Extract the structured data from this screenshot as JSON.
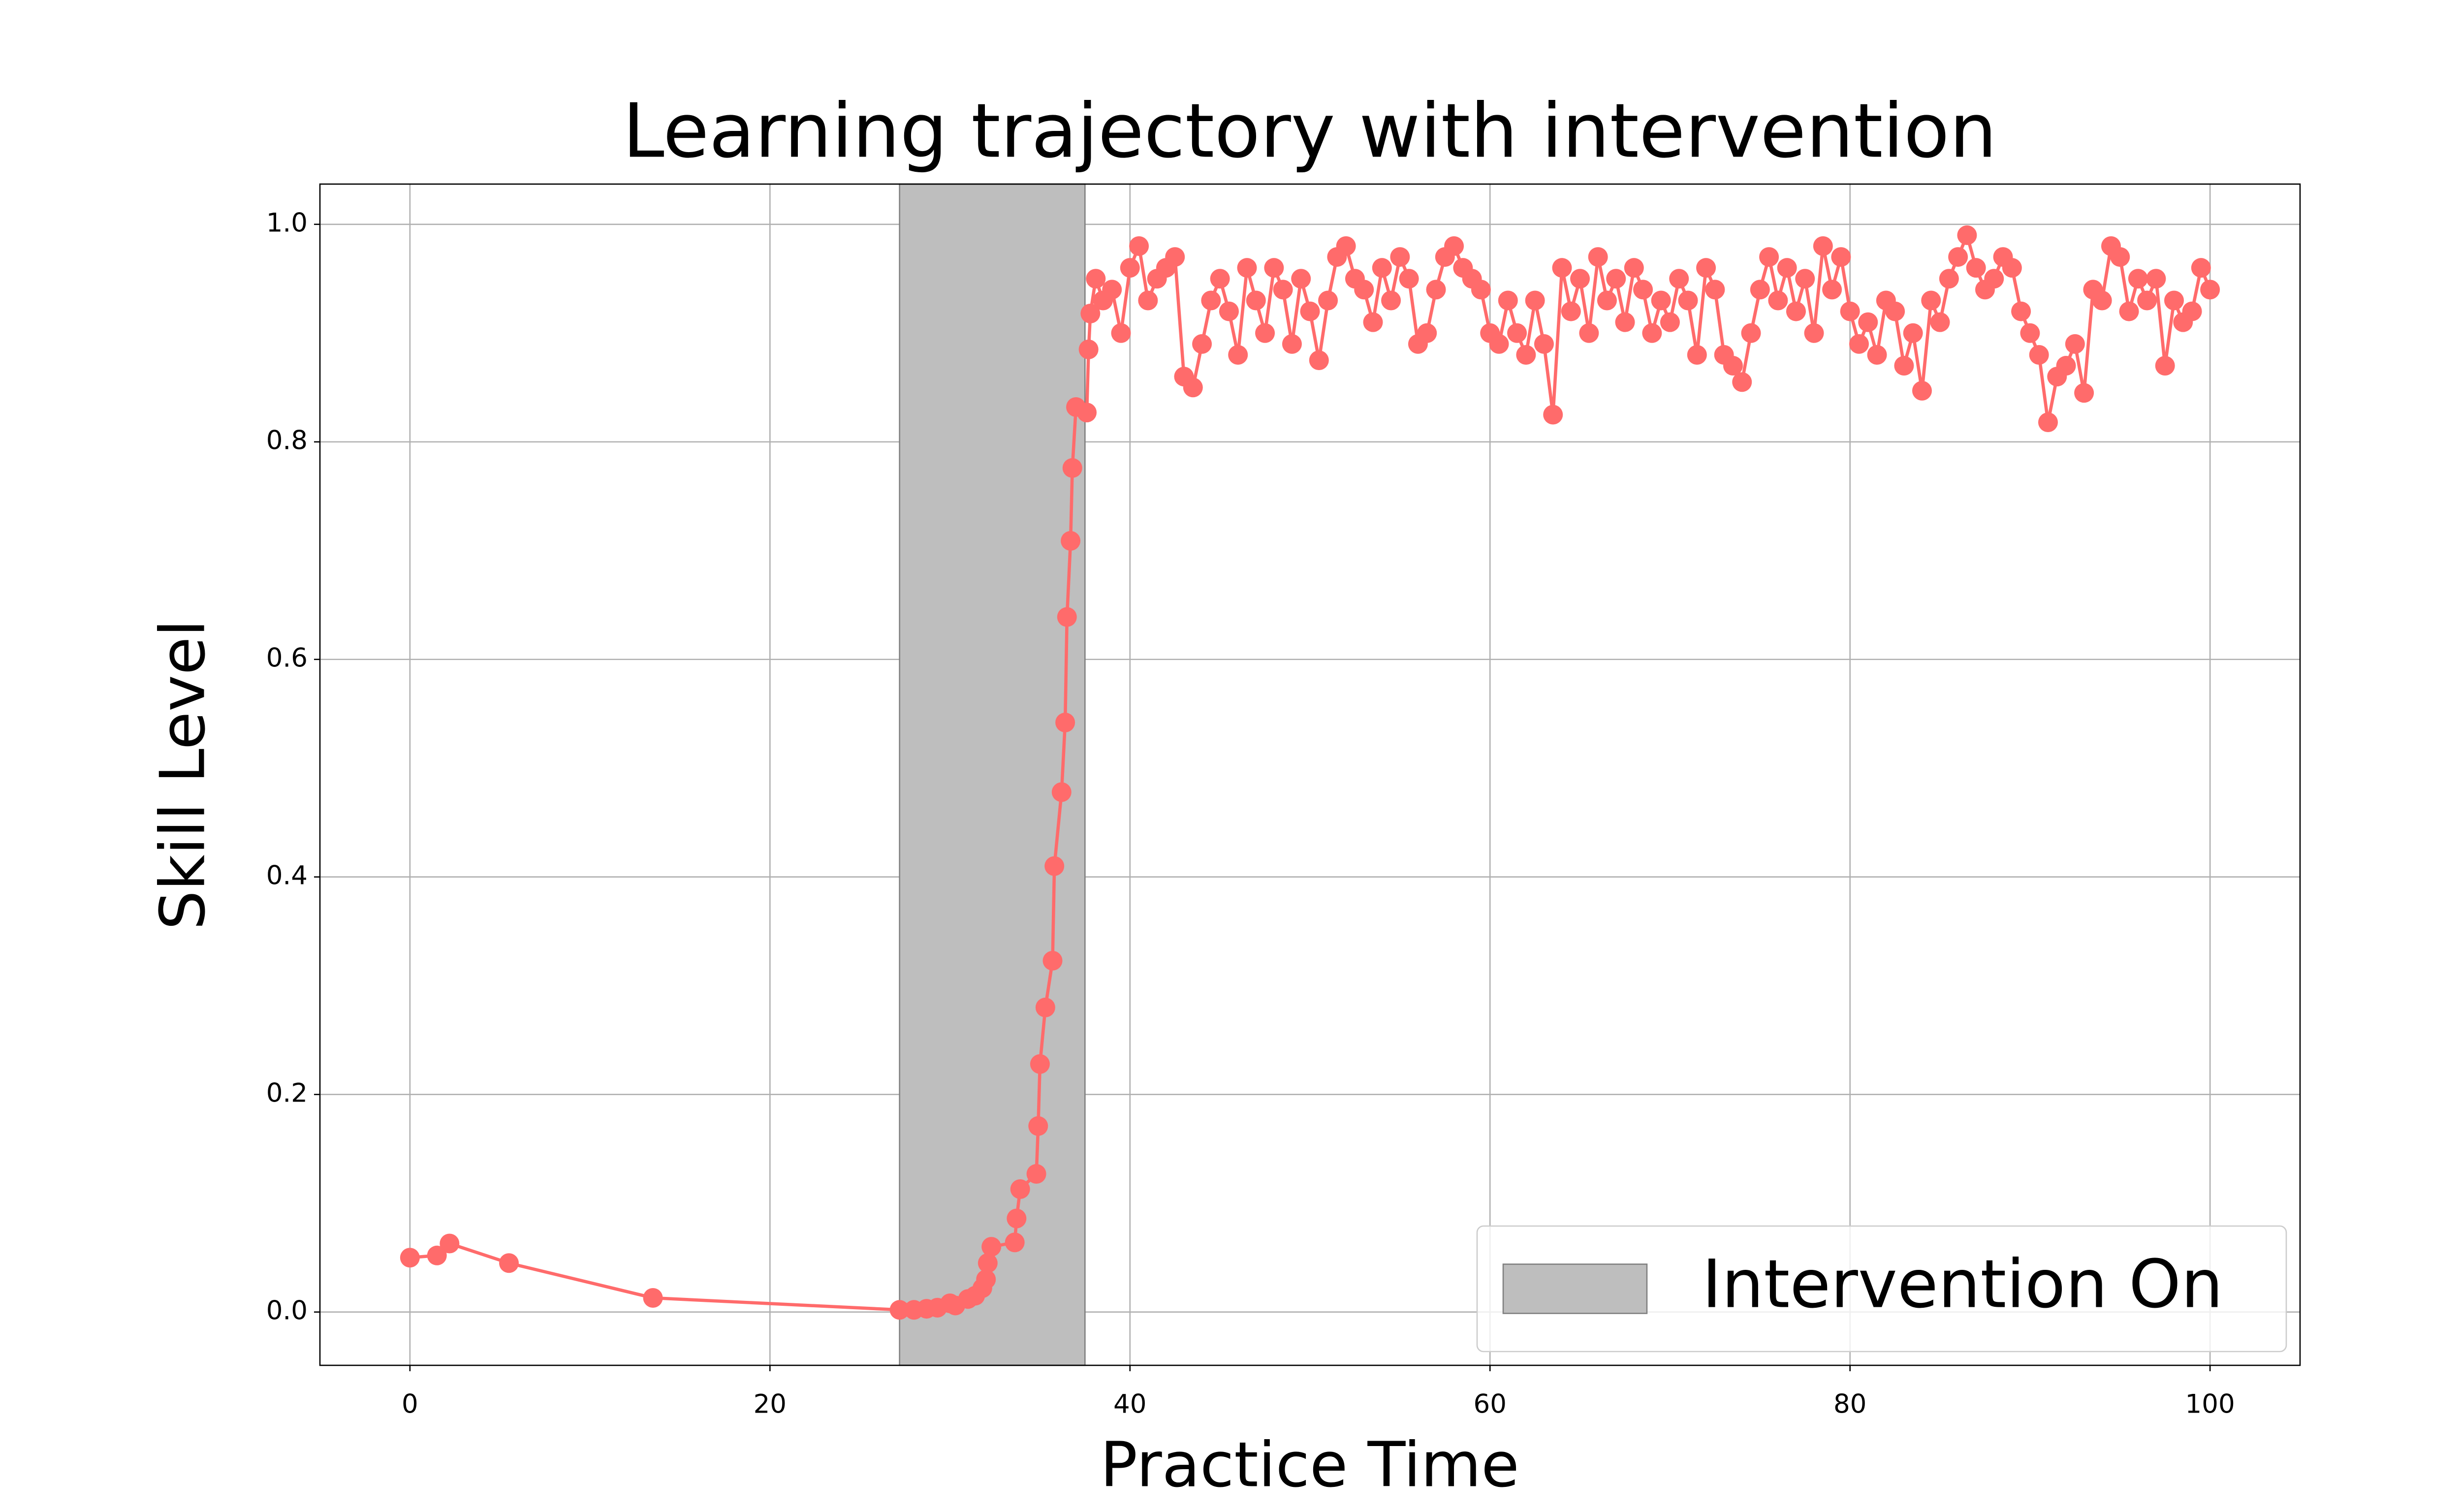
{
  "chart_data": {
    "type": "line",
    "title": "Learning trajectory with intervention",
    "x_label": "Practice Time",
    "y_label": "Skill Level",
    "color": "#ff6b6b",
    "grid": true,
    "legend": "lower right",
    "xlim": [
      -5,
      105
    ],
    "ylim": [
      -0.049,
      1.037
    ],
    "xticks": [
      0,
      20,
      40,
      60,
      80,
      100
    ],
    "yticks": [
      {
        "value": 0,
        "label": "0.0"
      },
      0.2,
      0.4,
      0.6,
      0.8,
      {
        "value": 1,
        "label": "1.0"
      }
    ],
    "spans": [
      {
        "x0": 27.2,
        "x1": 37.5,
        "label": "Intervention On",
        "color": "#bebebe"
      }
    ],
    "x": [
      0,
      1.5,
      2.2,
      5.5,
      13.5,
      27.2,
      28,
      28.7,
      29.3,
      30,
      30.3,
      31,
      31.4,
      31.8,
      32,
      32.1,
      32.3,
      33.6,
      33.7,
      33.9,
      34.8,
      34.9,
      35,
      35.3,
      35.7,
      35.8,
      36.2,
      36.4,
      36.5,
      36.7,
      36.8,
      37,
      37.6,
      37.7,
      37.8,
      38.1,
      38.5,
      39,
      39.5,
      40,
      40.5,
      41,
      41.5,
      42,
      42.5,
      43,
      43.5,
      44,
      44.5,
      45,
      45.5,
      46,
      46.5,
      47,
      47.5,
      48,
      48.5,
      49,
      49.5,
      50,
      50.5,
      51,
      51.5,
      52,
      52.5,
      53,
      53.5,
      54,
      54.5,
      55,
      55.5,
      56,
      56.5,
      57,
      57.5,
      58,
      58.5,
      59,
      59.5,
      60,
      60.5,
      61,
      61.5,
      62,
      62.5,
      63,
      63.5,
      64,
      64.5,
      65,
      65.5,
      66,
      66.5,
      67,
      67.5,
      68,
      68.5,
      69,
      69.5,
      70,
      70.5,
      71,
      71.5,
      72,
      72.5,
      73,
      73.5,
      74,
      74.5,
      75,
      75.5,
      76,
      76.5,
      77,
      77.5,
      78,
      78.5,
      79,
      79.5,
      80,
      80.5,
      81,
      81.5,
      82,
      82.5,
      83,
      83.5,
      84,
      84.5,
      85,
      85.5,
      86,
      86.5,
      87,
      87.5,
      88,
      88.5,
      89,
      89.5,
      90,
      90.5,
      91,
      91.5,
      92,
      92.5,
      93,
      93.5,
      94,
      94.5,
      95,
      95.5,
      96,
      96.5,
      97,
      97.5,
      98,
      98.5,
      99,
      99.5,
      100
    ],
    "values": [
      0.05,
      0.052,
      0.063,
      0.045,
      0.013,
      0.002,
      0.002,
      0.003,
      0.004,
      0.008,
      0.006,
      0.012,
      0.015,
      0.022,
      0.03,
      0.045,
      0.06,
      0.064,
      0.086,
      0.113,
      0.127,
      0.171,
      0.228,
      0.28,
      0.323,
      0.41,
      0.478,
      0.542,
      0.639,
      0.709,
      0.776,
      0.832,
      0.827,
      0.885,
      0.918,
      0.95,
      0.93,
      0.94,
      0.9,
      0.96,
      0.98,
      0.93,
      0.95,
      0.96,
      0.97,
      0.86,
      0.85,
      0.89,
      0.93,
      0.95,
      0.92,
      0.88,
      0.96,
      0.93,
      0.9,
      0.96,
      0.94,
      0.89,
      0.95,
      0.92,
      0.875,
      0.93,
      0.97,
      0.98,
      0.95,
      0.94,
      0.91,
      0.96,
      0.93,
      0.97,
      0.95,
      0.89,
      0.9,
      0.94,
      0.97,
      0.98,
      0.96,
      0.95,
      0.94,
      0.9,
      0.89,
      0.93,
      0.9,
      0.88,
      0.93,
      0.89,
      0.825,
      0.96,
      0.92,
      0.95,
      0.9,
      0.97,
      0.93,
      0.95,
      0.91,
      0.96,
      0.94,
      0.9,
      0.93,
      0.91,
      0.95,
      0.93,
      0.88,
      0.96,
      0.94,
      0.88,
      0.87,
      0.855,
      0.9,
      0.94,
      0.97,
      0.93,
      0.96,
      0.92,
      0.95,
      0.9,
      0.98,
      0.94,
      0.97,
      0.92,
      0.89,
      0.91,
      0.88,
      0.93,
      0.92,
      0.87,
      0.9,
      0.847,
      0.93,
      0.91,
      0.95,
      0.97,
      0.99,
      0.96,
      0.94,
      0.95,
      0.97,
      0.96,
      0.92,
      0.9,
      0.88,
      0.818,
      0.86,
      0.87,
      0.89,
      0.845,
      0.94,
      0.93,
      0.98,
      0.97,
      0.92,
      0.95,
      0.93,
      0.95,
      0.87,
      0.93,
      0.91,
      0.92,
      0.96,
      0.94
    ]
  }
}
